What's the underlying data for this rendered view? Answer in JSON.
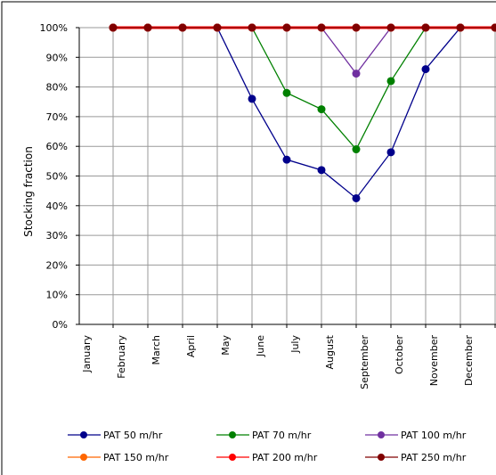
{
  "chart_data": {
    "type": "line",
    "title": "",
    "xlabel": "",
    "ylabel": "Stocking fraction",
    "categories": [
      "January",
      "February",
      "March",
      "April",
      "May",
      "June",
      "July",
      "August",
      "September",
      "October",
      "November",
      "December"
    ],
    "yticks": [
      "0%",
      "10%",
      "20%",
      "30%",
      "40%",
      "50%",
      "60%",
      "70%",
      "80%",
      "90%",
      "100%"
    ],
    "ylim": [
      0,
      100
    ],
    "grid": true,
    "legend_position": "bottom",
    "series": [
      {
        "name": "PAT 50 m/hr",
        "color": "#00008b",
        "values": [
          100,
          100,
          100,
          100,
          76,
          55.5,
          52,
          42.5,
          58,
          86,
          100,
          100
        ]
      },
      {
        "name": "PAT 70 m/hr",
        "color": "#008000",
        "values": [
          100,
          100,
          100,
          100,
          100,
          78,
          72.5,
          59,
          82,
          100,
          100,
          100
        ]
      },
      {
        "name": "PAT 100 m/hr",
        "color": "#7030a0",
        "values": [
          100,
          100,
          100,
          100,
          100,
          100,
          100,
          84.5,
          100,
          100,
          100,
          100
        ]
      },
      {
        "name": "PAT 150 m/hr",
        "color": "#ff6600",
        "values": [
          100,
          100,
          100,
          100,
          100,
          100,
          100,
          100,
          100,
          100,
          100,
          100
        ]
      },
      {
        "name": "PAT 200 m/hr",
        "color": "#ff0000",
        "values": [
          100,
          100,
          100,
          100,
          100,
          100,
          100,
          100,
          100,
          100,
          100,
          100
        ]
      },
      {
        "name": "PAT 250 m/hr",
        "color": "#800000",
        "values": [
          100,
          100,
          100,
          100,
          100,
          100,
          100,
          100,
          100,
          100,
          100,
          100
        ]
      }
    ]
  }
}
